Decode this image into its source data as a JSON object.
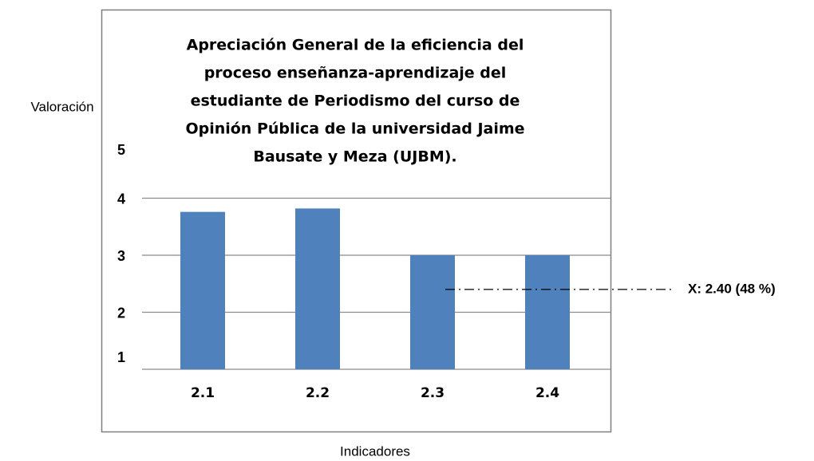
{
  "chart_data": {
    "type": "bar",
    "title": [
      "Apreciación General de la eficiencia del",
      "proceso enseñanza-aprendizaje del",
      "estudiante de Periodismo del curso de",
      "Opinión Pública de la universidad Jaime",
      "Bausate y Meza (UJBM)."
    ],
    "x_label": "Indicadores",
    "y_label": "Valoración",
    "categories": [
      "2.1",
      "2.2",
      "2.3",
      "2.4"
    ],
    "values": [
      3.76,
      3.82,
      3.0,
      3.0
    ],
    "color": "#4f81bd",
    "ylim": [
      1,
      5
    ],
    "yticks": [
      1,
      2,
      3,
      4,
      5
    ],
    "grid": true,
    "annotation": {
      "text": "X: 2.40 (48 %)",
      "value": 2.4
    }
  }
}
